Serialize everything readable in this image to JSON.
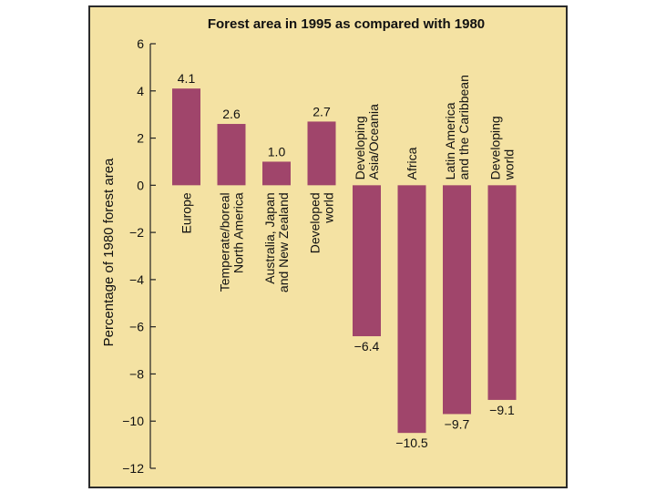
{
  "chart_data": {
    "type": "bar",
    "title": "Forest area in 1995 as compared with 1980",
    "xlabel": "",
    "ylabel": "Percentage of 1980 forest area",
    "ylim": [
      -12,
      6
    ],
    "yticks": [
      6,
      4,
      2,
      0,
      -2,
      -4,
      -6,
      -8,
      -10,
      -12
    ],
    "ytick_labels": [
      "6",
      "4",
      "2",
      "0",
      "−2",
      "−4",
      "−6",
      "−8",
      "−10",
      "−12"
    ],
    "categories": [
      [
        "Europe"
      ],
      [
        "Temperate/boreal",
        "North America"
      ],
      [
        "Australia, Japan",
        "and New Zealand"
      ],
      [
        "Developed",
        "world"
      ],
      [
        "Developing",
        "Asia/Oceania"
      ],
      [
        "Africa"
      ],
      [
        "Latin America",
        "and the Caribbean"
      ],
      [
        "Developing",
        "world"
      ]
    ],
    "values": [
      4.1,
      2.6,
      1.0,
      2.7,
      -6.4,
      -10.5,
      -9.7,
      -9.1
    ],
    "value_labels": [
      "4.1",
      "2.6",
      "1.0",
      "2.7",
      "−6.4",
      "−10.5",
      "−9.7",
      "−9.1"
    ],
    "bar_color": "#a0456b",
    "background_color": "#f4e2a3",
    "grid": false
  }
}
